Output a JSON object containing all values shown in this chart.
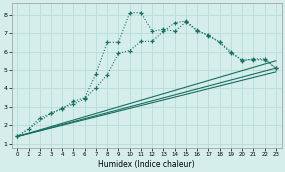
{
  "title": "",
  "xlabel": "Humidex (Indice chaleur)",
  "ylabel": "",
  "background_color": "#d5eeeb",
  "grid_color": "#b8ddd9",
  "line_color": "#1a6e62",
  "xlim": [
    -0.5,
    23.5
  ],
  "ylim": [
    0.8,
    8.6
  ],
  "xticks": [
    0,
    1,
    2,
    3,
    4,
    5,
    6,
    7,
    8,
    9,
    10,
    11,
    12,
    13,
    14,
    15,
    16,
    17,
    18,
    19,
    20,
    21,
    22,
    23
  ],
  "yticks": [
    1,
    2,
    3,
    4,
    5,
    6,
    7,
    8
  ],
  "curve1_x": [
    0,
    1,
    2,
    3,
    4,
    5,
    6,
    7,
    8,
    9,
    10,
    11,
    12,
    13,
    14,
    15,
    16,
    17,
    18,
    19,
    20,
    21,
    22,
    23
  ],
  "curve1_y": [
    1.4,
    1.8,
    2.4,
    2.65,
    2.9,
    3.3,
    3.5,
    4.8,
    6.5,
    6.5,
    8.1,
    8.1,
    7.1,
    7.2,
    7.1,
    7.6,
    7.1,
    6.9,
    6.5,
    6.0,
    5.5,
    5.6,
    5.6,
    5.1
  ],
  "curve2_x": [
    0,
    3,
    4,
    5,
    6,
    7,
    8,
    9,
    10,
    11,
    12,
    13,
    14,
    15,
    16,
    17,
    18,
    19,
    20,
    21,
    22,
    23
  ],
  "curve2_y": [
    1.4,
    2.65,
    2.95,
    3.15,
    3.45,
    4.05,
    4.75,
    5.9,
    6.05,
    6.55,
    6.55,
    7.1,
    7.55,
    7.65,
    7.15,
    6.85,
    6.5,
    5.9,
    5.55,
    5.55,
    5.55,
    5.1
  ],
  "line1_x": [
    0,
    23
  ],
  "line1_y": [
    1.4,
    5.5
  ],
  "line2_x": [
    0,
    23
  ],
  "line2_y": [
    1.4,
    5.1
  ],
  "line3_x": [
    0,
    23
  ],
  "line3_y": [
    1.4,
    4.9
  ]
}
